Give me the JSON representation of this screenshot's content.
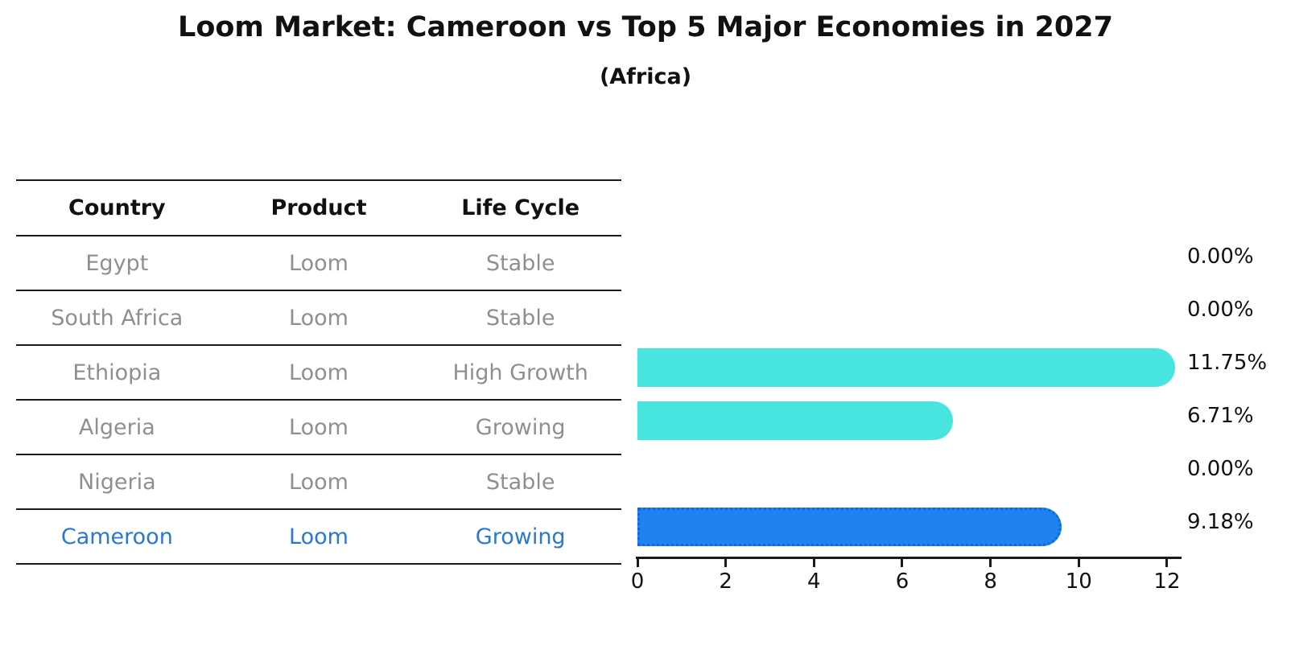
{
  "title": "Loom Market: Cameroon vs Top 5 Major Economies in 2027",
  "subtitle": "(Africa)",
  "table": {
    "headers": [
      "Country",
      "Product",
      "Life Cycle"
    ],
    "rows": [
      {
        "country": "Egypt",
        "product": "Loom",
        "life_cycle": "Stable",
        "highlight": false
      },
      {
        "country": "South Africa",
        "product": "Loom",
        "life_cycle": "Stable",
        "highlight": false
      },
      {
        "country": "Ethiopia",
        "product": "Loom",
        "life_cycle": "High Growth",
        "highlight": false
      },
      {
        "country": "Algeria",
        "product": "Loom",
        "life_cycle": "Growing",
        "highlight": false
      },
      {
        "country": "Nigeria",
        "product": "Loom",
        "life_cycle": "Stable",
        "highlight": false
      },
      {
        "country": "Cameroon",
        "product": "Loom",
        "life_cycle": "Growing",
        "highlight": true
      }
    ]
  },
  "chart_data": {
    "type": "bar",
    "orientation": "horizontal",
    "title": "Loom Market: Cameroon vs Top 5 Major Economies in 2027",
    "subtitle": "(Africa)",
    "categories": [
      "Egypt",
      "South Africa",
      "Ethiopia",
      "Algeria",
      "Nigeria",
      "Cameroon"
    ],
    "values": [
      0.0,
      0.0,
      11.75,
      6.71,
      0.0,
      9.18
    ],
    "value_labels": [
      "0.00%",
      "0.00%",
      "11.75%",
      "6.71%",
      "0.00%",
      "9.18%"
    ],
    "xlabel": "",
    "ylabel": "",
    "xlim": [
      0,
      12.33
    ],
    "xticks": [
      0,
      2,
      4,
      6,
      8,
      10,
      12
    ],
    "grid": false,
    "legend": false,
    "highlight_index": 5,
    "colors": {
      "bar_default": "#48e5e0",
      "bar_highlight": "#1e82f0",
      "bar_highlight_border": "#1266d8",
      "highlight_text": "#2878d4",
      "table_text": "#8f8f8f",
      "axis_text": "#111111",
      "line": "#1a1a1a"
    }
  }
}
